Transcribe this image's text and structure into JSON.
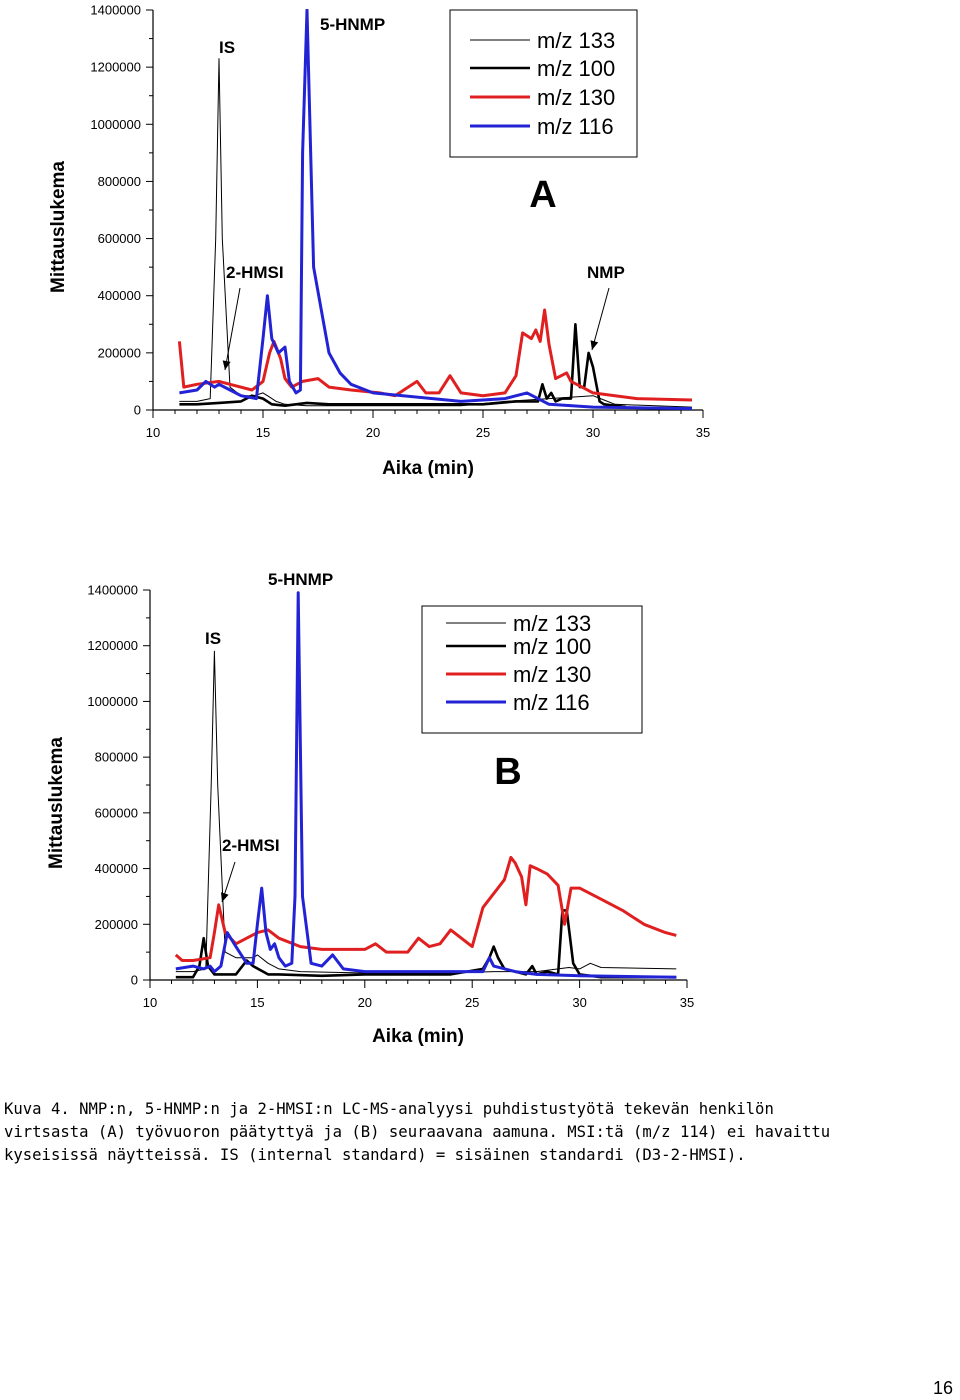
{
  "chart_data": [
    {
      "panel": "A",
      "type": "line",
      "xlabel": "Aika (min)",
      "ylabel": "Mittauslukema",
      "xlim": [
        10,
        35
      ],
      "ylim": [
        0,
        1400000
      ],
      "xticks": [
        "10",
        "15",
        "20",
        "25",
        "30",
        "35"
      ],
      "yticks": [
        "0",
        "200000",
        "400000",
        "600000",
        "800000",
        "1000000",
        "1200000",
        "1400000"
      ],
      "legend": [
        "m/z 133",
        "m/z 100",
        "m/z 130",
        "m/z 116"
      ],
      "legend_position": "top-right",
      "annotations": [
        "IS",
        "5-HNMP",
        "2-HMSI",
        "NMP"
      ],
      "series": [
        {
          "name": "m/z 133",
          "color": "#000000",
          "width": 1,
          "x": [
            11.2,
            12.0,
            12.6,
            12.85,
            13.0,
            13.15,
            13.5,
            14.0,
            14.6,
            15.0,
            15.3,
            15.6,
            16.0,
            17.0,
            20.0,
            24.0,
            26.0,
            28.0,
            30.0,
            30.5,
            31.0,
            34.5
          ],
          "y": [
            30000,
            30000,
            40000,
            600000,
            1230000,
            600000,
            80000,
            50000,
            50000,
            60000,
            45000,
            30000,
            20000,
            15000,
            15000,
            15000,
            30000,
            40000,
            50000,
            35000,
            20000,
            10000
          ]
        },
        {
          "name": "m/z 100",
          "color": "#000000",
          "width": 2.6,
          "x": [
            11.2,
            12.0,
            13.0,
            14.0,
            14.5,
            15.0,
            15.4,
            16.0,
            17.0,
            18.0,
            20.0,
            22.0,
            24.0,
            25.0,
            26.5,
            27.5,
            27.7,
            27.9,
            28.1,
            28.3,
            28.6,
            29.0,
            29.2,
            29.4,
            29.6,
            29.8,
            30.0,
            30.3,
            30.5,
            31.5
          ],
          "y": [
            20000,
            20000,
            25000,
            30000,
            50000,
            40000,
            20000,
            15000,
            25000,
            20000,
            20000,
            20000,
            20000,
            20000,
            30000,
            30000,
            90000,
            40000,
            60000,
            30000,
            40000,
            40000,
            300000,
            80000,
            80000,
            200000,
            150000,
            30000,
            20000,
            10000
          ]
        },
        {
          "name": "m/z 130",
          "color": "#e02020",
          "width": 3,
          "x": [
            11.2,
            11.4,
            12.0,
            13.0,
            13.5,
            14.5,
            15.0,
            15.3,
            15.5,
            15.8,
            16.0,
            16.3,
            16.8,
            17.5,
            18.0,
            19.0,
            20.3,
            21.0,
            22.0,
            22.4,
            23.0,
            23.5,
            24.0,
            25.0,
            26.0,
            26.5,
            26.8,
            27.2,
            27.4,
            27.6,
            27.8,
            28.0,
            28.3,
            28.8,
            29.0,
            29.5,
            30.0,
            31.0,
            32.0,
            34.5
          ],
          "y": [
            240000,
            80000,
            90000,
            100000,
            90000,
            70000,
            100000,
            200000,
            240000,
            180000,
            110000,
            80000,
            100000,
            110000,
            80000,
            70000,
            60000,
            50000,
            100000,
            60000,
            60000,
            120000,
            60000,
            50000,
            60000,
            120000,
            270000,
            250000,
            280000,
            240000,
            350000,
            230000,
            110000,
            130000,
            100000,
            80000,
            60000,
            50000,
            40000,
            35000
          ]
        },
        {
          "name": "m/z 116",
          "color": "#2323d6",
          "width": 3,
          "x": [
            11.2,
            12.0,
            12.4,
            12.8,
            13.0,
            13.5,
            14.0,
            14.7,
            15.0,
            15.2,
            15.4,
            15.7,
            16.0,
            16.2,
            16.5,
            16.7,
            16.8,
            17.0,
            17.3,
            18.0,
            18.5,
            19.0,
            20.0,
            24.0,
            26.0,
            27.0,
            28.0,
            30.0,
            34.5
          ],
          "y": [
            60000,
            70000,
            100000,
            80000,
            90000,
            70000,
            50000,
            40000,
            250000,
            400000,
            250000,
            200000,
            220000,
            100000,
            60000,
            70000,
            900000,
            1400000,
            500000,
            200000,
            130000,
            90000,
            60000,
            30000,
            40000,
            60000,
            20000,
            10000,
            5000
          ]
        }
      ]
    },
    {
      "panel": "B",
      "type": "line",
      "xlabel": "Aika (min)",
      "ylabel": "Mittauslukema",
      "xlim": [
        10,
        35
      ],
      "ylim": [
        0,
        1400000
      ],
      "xticks": [
        "10",
        "15",
        "20",
        "25",
        "30",
        "35"
      ],
      "yticks": [
        "0",
        "200000",
        "400000",
        "600000",
        "800000",
        "1000000",
        "1200000",
        "1400000"
      ],
      "legend": [
        "m/z 133",
        "m/z 100",
        "m/z 130",
        "m/z 116"
      ],
      "legend_position": "top-right",
      "annotations": [
        "IS",
        "5-HNMP",
        "2-HMSI"
      ],
      "series": [
        {
          "name": "m/z 133",
          "color": "#000000",
          "width": 1,
          "x": [
            11.2,
            12.0,
            12.6,
            12.85,
            13.0,
            13.15,
            13.5,
            14.0,
            14.8,
            15.0,
            15.5,
            16.0,
            17.0,
            20.0,
            24.0,
            26.0,
            28.0,
            29.0,
            29.5,
            30.0,
            30.5,
            31.0,
            34.5
          ],
          "y": [
            30000,
            30000,
            40000,
            700000,
            1180000,
            700000,
            100000,
            80000,
            80000,
            90000,
            60000,
            40000,
            30000,
            25000,
            25000,
            30000,
            30000,
            40000,
            45000,
            40000,
            60000,
            45000,
            40000
          ]
        },
        {
          "name": "m/z 100",
          "color": "#000000",
          "width": 2.6,
          "x": [
            11.2,
            12.0,
            12.3,
            12.5,
            12.7,
            13.0,
            14.0,
            14.5,
            14.8,
            15.5,
            16.0,
            18.0,
            20.0,
            24.0,
            25.5,
            25.8,
            26.0,
            26.2,
            26.5,
            27.0,
            27.5,
            27.8,
            28.0,
            28.5,
            29.0,
            29.2,
            29.4,
            29.7,
            30.0,
            31.0,
            34.5
          ],
          "y": [
            10000,
            10000,
            50000,
            150000,
            50000,
            20000,
            20000,
            70000,
            50000,
            20000,
            20000,
            15000,
            20000,
            20000,
            40000,
            80000,
            120000,
            80000,
            40000,
            30000,
            20000,
            50000,
            20000,
            30000,
            20000,
            250000,
            250000,
            60000,
            20000,
            10000,
            10000
          ]
        },
        {
          "name": "m/z 130",
          "color": "#e02020",
          "width": 3,
          "x": [
            11.2,
            11.5,
            12.0,
            12.8,
            13.0,
            13.2,
            13.5,
            14.0,
            15.0,
            15.5,
            16.0,
            17.0,
            18.0,
            20.0,
            20.5,
            21.0,
            22.0,
            22.5,
            23.0,
            23.5,
            24.0,
            25.0,
            25.5,
            26.0,
            26.5,
            26.8,
            27.0,
            27.3,
            27.5,
            27.7,
            28.0,
            28.5,
            29.0,
            29.3,
            29.6,
            30.0,
            31.0,
            32.0,
            33.0,
            34.0,
            34.5
          ],
          "y": [
            90000,
            70000,
            70000,
            80000,
            170000,
            270000,
            170000,
            130000,
            170000,
            180000,
            150000,
            120000,
            110000,
            110000,
            130000,
            100000,
            100000,
            150000,
            120000,
            130000,
            180000,
            120000,
            260000,
            310000,
            360000,
            440000,
            420000,
            370000,
            270000,
            410000,
            400000,
            380000,
            340000,
            200000,
            330000,
            330000,
            290000,
            250000,
            200000,
            170000,
            160000
          ]
        },
        {
          "name": "m/z 116",
          "color": "#2323d6",
          "width": 3,
          "x": [
            11.2,
            12.0,
            12.5,
            12.8,
            13.0,
            13.3,
            13.6,
            14.0,
            14.5,
            14.8,
            15.0,
            15.2,
            15.4,
            15.6,
            15.8,
            16.0,
            16.3,
            16.6,
            16.75,
            16.9,
            17.1,
            17.5,
            18.0,
            18.5,
            19.0,
            20.0,
            24.0,
            25.5,
            25.8,
            26.0,
            27.0,
            28.0,
            30.0,
            34.5
          ],
          "y": [
            40000,
            50000,
            40000,
            50000,
            30000,
            50000,
            170000,
            120000,
            60000,
            60000,
            200000,
            330000,
            170000,
            110000,
            130000,
            80000,
            50000,
            60000,
            300000,
            1390000,
            300000,
            60000,
            50000,
            90000,
            40000,
            30000,
            30000,
            30000,
            80000,
            50000,
            30000,
            20000,
            15000,
            10000
          ]
        }
      ]
    }
  ],
  "figure": {
    "caption": "Kuva 4. NMP:n, 5-HNMP:n ja 2-HMSI:n LC-MS-analyysi puhdistustyötä tekevän henkilön\nvirtsasta (A) työvuoron päätyttyä ja (B) seuraavana aamuna. MSI:tä (m/z 114) ei havaittu\nkyseisissä näytteissä. IS (internal standard) = sisäinen standardi (D3-2-HMSI).",
    "page_number": "16"
  }
}
